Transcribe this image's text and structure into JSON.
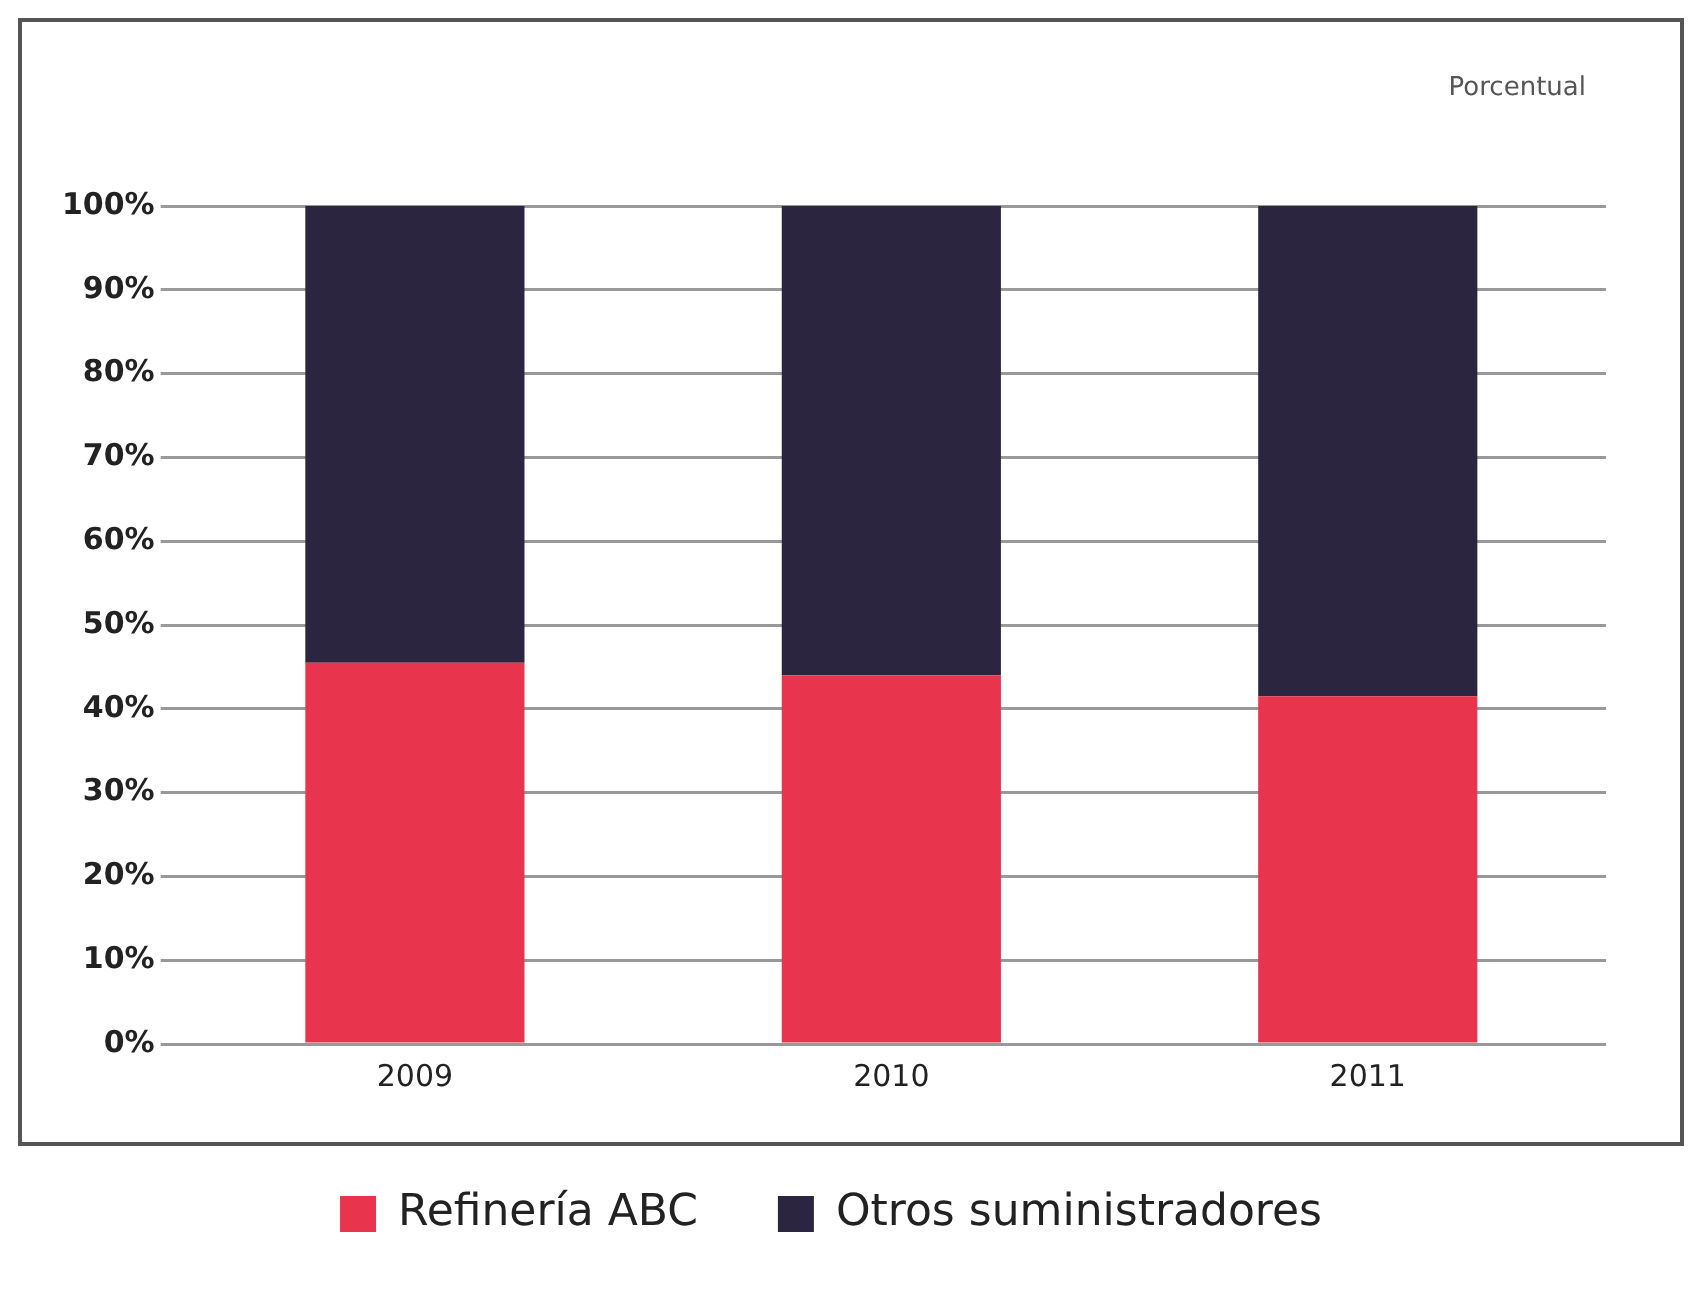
{
  "chart_data": {
    "type": "bar",
    "stacked": true,
    "categories": [
      "2009",
      "2010",
      "2011"
    ],
    "series": [
      {
        "name": "Refinería ABC",
        "color": "#e8344c",
        "values": [
          45.5,
          44,
          41.5
        ]
      },
      {
        "name": "Otros suministradores",
        "color": "#2b2540",
        "values": [
          54.5,
          56,
          58.5
        ]
      }
    ],
    "ylim": [
      0,
      100
    ],
    "yticks": [
      {
        "value": 0,
        "label": "0%"
      },
      {
        "value": 10,
        "label": "10%"
      },
      {
        "value": 20,
        "label": "20%"
      },
      {
        "value": 30,
        "label": "30%"
      },
      {
        "value": 40,
        "label": "40%"
      },
      {
        "value": 50,
        "label": "50%"
      },
      {
        "value": 60,
        "label": "60%"
      },
      {
        "value": 70,
        "label": "70%"
      },
      {
        "value": 80,
        "label": "80%"
      },
      {
        "value": 90,
        "label": "90%"
      },
      {
        "value": 100,
        "label": "100%"
      }
    ],
    "grid": "y",
    "legend": "bottom",
    "annotations": [
      "Porcentual"
    ]
  }
}
